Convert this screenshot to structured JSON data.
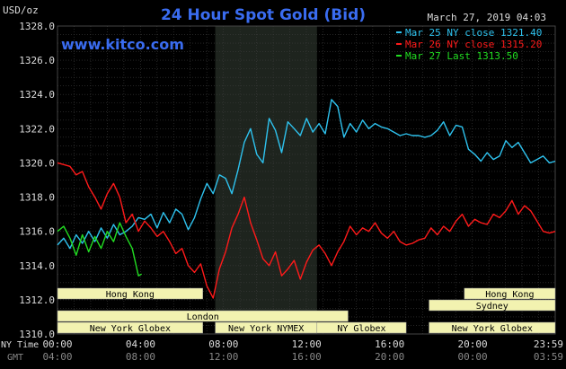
{
  "chart_data": {
    "type": "line",
    "title": "24 Hour Spot Gold (Bid)",
    "ylabel": "USD/oz",
    "brand": "www.kitco.com",
    "timestamp": "March 27, 2019 04:03",
    "ylim": [
      1310,
      1328
    ],
    "y_ticks": [
      "1310.0",
      "1312.0",
      "1314.0",
      "1316.0",
      "1318.0",
      "1320.0",
      "1322.0",
      "1324.0",
      "1326.0",
      "1328.0"
    ],
    "x_row_labels": {
      "ny": "NY Time",
      "gmt": "GMT"
    },
    "x_ticks_ny": [
      "00:00",
      "04:00",
      "08:00",
      "12:00",
      "16:00",
      "20:00",
      "23:59"
    ],
    "x_ticks_gmt": [
      "04:00",
      "08:00",
      "12:00",
      "16:00",
      "20:00",
      "00:00",
      "03:59"
    ],
    "grid": true,
    "legend_position": "top-right",
    "colors": {
      "mar25": "#2ec2ee",
      "mar26": "#ff1a1a",
      "mar27": "#22dd22",
      "highlight": "#1e241e",
      "session_fill": "#f2f2b0"
    },
    "series": [
      {
        "name": "Mar 25 NY close 1321.40",
        "color": "#2ec2ee",
        "x": [
          0,
          0.3,
          0.6,
          0.9,
          1.2,
          1.5,
          1.8,
          2.1,
          2.4,
          2.7,
          3.0,
          3.3,
          3.6,
          3.9,
          4.2,
          4.5,
          4.8,
          5.1,
          5.4,
          5.7,
          6.0,
          6.3,
          6.6,
          6.9,
          7.2,
          7.5,
          7.8,
          8.1,
          8.4,
          8.7,
          9.0,
          9.3,
          9.6,
          9.9,
          10.2,
          10.5,
          10.8,
          11.1,
          11.4,
          11.7,
          12.0,
          12.3,
          12.6,
          12.9,
          13.2,
          13.5,
          13.8,
          14.1,
          14.4,
          14.7,
          15.0,
          15.3,
          15.6,
          15.9,
          16.2,
          16.5,
          16.8,
          17.1,
          17.4,
          17.7,
          18.0,
          18.3,
          18.6,
          18.9,
          19.2,
          19.5,
          19.8,
          20.1,
          20.4,
          20.7,
          21.0,
          21.3,
          21.6,
          21.9,
          22.2,
          22.5,
          22.8,
          23.1,
          23.4,
          23.7,
          23.98
        ],
        "values": [
          1315.2,
          1315.6,
          1315.0,
          1315.8,
          1315.3,
          1316.0,
          1315.4,
          1316.2,
          1315.6,
          1316.4,
          1315.8,
          1316.0,
          1316.3,
          1316.8,
          1316.7,
          1317.0,
          1316.2,
          1317.1,
          1316.5,
          1317.3,
          1317.0,
          1316.1,
          1316.8,
          1317.9,
          1318.8,
          1318.2,
          1319.3,
          1319.1,
          1318.2,
          1319.6,
          1321.2,
          1322.0,
          1320.5,
          1320.0,
          1322.6,
          1321.9,
          1320.6,
          1322.4,
          1322.0,
          1321.6,
          1322.6,
          1321.8,
          1322.3,
          1321.7,
          1323.7,
          1323.3,
          1321.5,
          1322.3,
          1321.8,
          1322.5,
          1322.0,
          1322.3,
          1322.1,
          1322.0,
          1321.8,
          1321.6,
          1321.7,
          1321.6,
          1321.6,
          1321.5,
          1321.6,
          1321.9,
          1322.4,
          1321.6,
          1322.2,
          1322.1,
          1320.8,
          1320.5,
          1320.1,
          1320.6,
          1320.2,
          1320.4,
          1321.3,
          1320.9,
          1321.2,
          1320.6,
          1320.0,
          1320.2,
          1320.4,
          1320.0,
          1320.1
        ]
      },
      {
        "name": "Mar 26 NY close 1315.20",
        "color": "#ff1a1a",
        "x": [
          0,
          0.3,
          0.6,
          0.9,
          1.2,
          1.5,
          1.8,
          2.1,
          2.4,
          2.7,
          3.0,
          3.3,
          3.6,
          3.9,
          4.2,
          4.5,
          4.8,
          5.1,
          5.4,
          5.7,
          6.0,
          6.3,
          6.6,
          6.9,
          7.2,
          7.5,
          7.8,
          8.1,
          8.4,
          8.7,
          9.0,
          9.3,
          9.6,
          9.9,
          10.2,
          10.5,
          10.8,
          11.1,
          11.4,
          11.7,
          12.0,
          12.3,
          12.6,
          12.9,
          13.2,
          13.5,
          13.8,
          14.1,
          14.4,
          14.7,
          15.0,
          15.3,
          15.6,
          15.9,
          16.2,
          16.5,
          16.8,
          17.1,
          17.4,
          17.7,
          18.0,
          18.3,
          18.6,
          18.9,
          19.2,
          19.5,
          19.8,
          20.1,
          20.4,
          20.7,
          21.0,
          21.3,
          21.6,
          21.9,
          22.2,
          22.5,
          22.8,
          23.1,
          23.4,
          23.7,
          23.98
        ],
        "values": [
          1320.0,
          1319.9,
          1319.8,
          1319.3,
          1319.5,
          1318.6,
          1318.0,
          1317.3,
          1318.2,
          1318.8,
          1318.0,
          1316.5,
          1317.0,
          1316.0,
          1316.6,
          1316.2,
          1315.7,
          1316.0,
          1315.4,
          1314.7,
          1315.0,
          1314.0,
          1313.6,
          1314.1,
          1312.8,
          1312.1,
          1313.8,
          1314.8,
          1316.2,
          1317.0,
          1318.0,
          1316.5,
          1315.5,
          1314.4,
          1314.0,
          1314.8,
          1313.4,
          1313.8,
          1314.3,
          1313.2,
          1314.2,
          1314.9,
          1315.2,
          1314.7,
          1314.0,
          1314.8,
          1315.4,
          1316.3,
          1315.8,
          1316.2,
          1316.0,
          1316.5,
          1315.9,
          1315.6,
          1316.0,
          1315.4,
          1315.2,
          1315.3,
          1315.5,
          1315.6,
          1316.2,
          1315.8,
          1316.3,
          1316.0,
          1316.6,
          1317.0,
          1316.3,
          1316.7,
          1316.5,
          1316.4,
          1317.0,
          1316.8,
          1317.2,
          1317.8,
          1317.0,
          1317.5,
          1317.2,
          1316.6,
          1316.0,
          1315.9,
          1316.0
        ]
      },
      {
        "name": "Mar 27 Last 1313.50",
        "color": "#22dd22",
        "x": [
          0,
          0.3,
          0.6,
          0.9,
          1.2,
          1.5,
          1.8,
          2.1,
          2.4,
          2.7,
          3.0,
          3.3,
          3.6,
          3.9,
          4.05
        ],
        "values": [
          1316.0,
          1316.3,
          1315.6,
          1314.6,
          1315.8,
          1314.8,
          1315.7,
          1315.0,
          1316.0,
          1315.4,
          1316.5,
          1315.7,
          1315.0,
          1313.4,
          1313.5
        ]
      }
    ],
    "highlight_region": {
      "x": [
        7.6,
        12.5
      ]
    },
    "sessions": [
      {
        "label": "Hong Kong",
        "row": 0,
        "start": 0,
        "end": 7.0
      },
      {
        "label": "Hong Kong",
        "row": 0,
        "start": 19.6,
        "end": 23.98
      },
      {
        "label": "Sydney",
        "row": 1,
        "start": 17.9,
        "end": 23.98
      },
      {
        "label": "London",
        "row": 2,
        "start": 0,
        "end": 14.0
      },
      {
        "label": "New York Globex",
        "row": 3,
        "start": 0,
        "end": 7.0
      },
      {
        "label": "New York NYMEX",
        "row": 3,
        "start": 7.6,
        "end": 12.5
      },
      {
        "label": "NY Globex",
        "row": 3,
        "start": 12.5,
        "end": 16.8
      },
      {
        "label": "New York Globex",
        "row": 3,
        "start": 17.9,
        "end": 23.98
      }
    ]
  }
}
